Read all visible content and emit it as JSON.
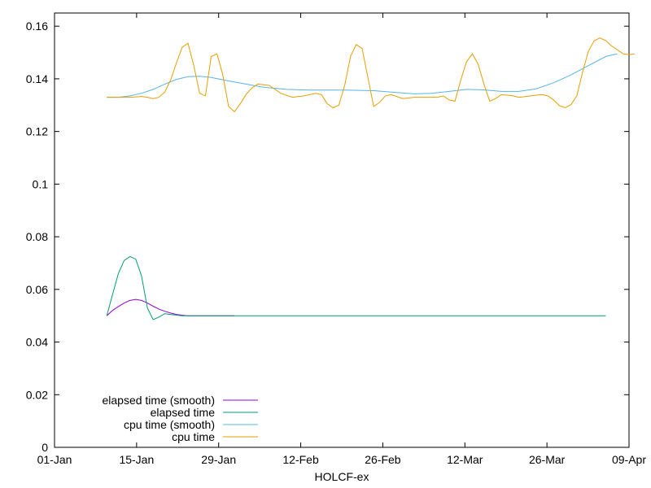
{
  "chart_data": {
    "type": "line",
    "xlabel": "HOLCF-ex",
    "ylabel": "",
    "x_ticks": [
      "01-Jan",
      "15-Jan",
      "29-Jan",
      "12-Feb",
      "26-Feb",
      "12-Mar",
      "26-Mar",
      "09-Apr"
    ],
    "xlim": [
      "2024-01-01",
      "2024-04-09"
    ],
    "y_ticks": [
      "0",
      "0.02",
      "0.04",
      "0.06",
      "0.08",
      "0.1",
      "0.12",
      "0.14",
      "0.16"
    ],
    "ylim": [
      0,
      0.165
    ],
    "grid": false,
    "legend_position": "bottom-left",
    "series": [
      {
        "name": "elapsed time (smooth)",
        "color": "#9400d3",
        "points": [
          [
            "2024-01-10",
            0.05
          ],
          [
            "2024-01-11",
            0.052
          ],
          [
            "2024-01-12",
            0.0535
          ],
          [
            "2024-01-13",
            0.0548
          ],
          [
            "2024-01-14",
            0.0558
          ],
          [
            "2024-01-15",
            0.0562
          ],
          [
            "2024-01-16",
            0.0558
          ],
          [
            "2024-01-17",
            0.0548
          ],
          [
            "2024-01-18",
            0.0536
          ],
          [
            "2024-01-19",
            0.0525
          ],
          [
            "2024-01-20",
            0.0517
          ],
          [
            "2024-01-21",
            0.051
          ],
          [
            "2024-01-22",
            0.0505
          ],
          [
            "2024-01-23",
            0.0502
          ],
          [
            "2024-01-24",
            0.05
          ],
          [
            "2024-02-01",
            0.05
          ]
        ]
      },
      {
        "name": "elapsed time",
        "color": "#009e73",
        "points": [
          [
            "2024-01-10",
            0.05
          ],
          [
            "2024-01-11",
            0.058
          ],
          [
            "2024-01-12",
            0.066
          ],
          [
            "2024-01-13",
            0.071
          ],
          [
            "2024-01-14",
            0.0725
          ],
          [
            "2024-01-15",
            0.0715
          ],
          [
            "2024-01-16",
            0.065
          ],
          [
            "2024-01-17",
            0.053
          ],
          [
            "2024-01-18",
            0.0485
          ],
          [
            "2024-01-19",
            0.0495
          ],
          [
            "2024-01-20",
            0.0508
          ],
          [
            "2024-01-21",
            0.0505
          ],
          [
            "2024-01-23",
            0.05
          ],
          [
            "2024-04-05",
            0.05
          ]
        ]
      },
      {
        "name": "cpu time (smooth)",
        "color": "#56b4e9",
        "points": [
          [
            "2024-01-10",
            0.133
          ],
          [
            "2024-01-12",
            0.133
          ],
          [
            "2024-01-14",
            0.1335
          ],
          [
            "2024-01-16",
            0.1345
          ],
          [
            "2024-01-18",
            0.136
          ],
          [
            "2024-01-20",
            0.138
          ],
          [
            "2024-01-22",
            0.1398
          ],
          [
            "2024-01-24",
            0.1408
          ],
          [
            "2024-01-26",
            0.141
          ],
          [
            "2024-01-28",
            0.1405
          ],
          [
            "2024-01-31",
            0.1392
          ],
          [
            "2024-02-03",
            0.138
          ],
          [
            "2024-02-06",
            0.1368
          ],
          [
            "2024-02-10",
            0.136
          ],
          [
            "2024-02-14",
            0.1357
          ],
          [
            "2024-02-20",
            0.1357
          ],
          [
            "2024-02-25",
            0.1355
          ],
          [
            "2024-02-29",
            0.1348
          ],
          [
            "2024-03-03",
            0.1343
          ],
          [
            "2024-03-06",
            0.1345
          ],
          [
            "2024-03-09",
            0.1352
          ],
          [
            "2024-03-12",
            0.136
          ],
          [
            "2024-03-15",
            0.1358
          ],
          [
            "2024-03-18",
            0.1352
          ],
          [
            "2024-03-21",
            0.1352
          ],
          [
            "2024-03-24",
            0.1362
          ],
          [
            "2024-03-27",
            0.1385
          ],
          [
            "2024-03-30",
            0.1415
          ],
          [
            "2024-04-02",
            0.145
          ],
          [
            "2024-04-05",
            0.1485
          ],
          [
            "2024-04-07",
            0.1495
          ]
        ]
      },
      {
        "name": "cpu time",
        "color": "#e69f00",
        "points": [
          [
            "2024-01-10",
            0.133
          ],
          [
            "2024-01-12",
            0.133
          ],
          [
            "2024-01-14",
            0.133
          ],
          [
            "2024-01-16",
            0.1333
          ],
          [
            "2024-01-17",
            0.133
          ],
          [
            "2024-01-18",
            0.1325
          ],
          [
            "2024-01-19",
            0.133
          ],
          [
            "2024-01-20",
            0.135
          ],
          [
            "2024-01-21",
            0.1395
          ],
          [
            "2024-01-22",
            0.146
          ],
          [
            "2024-01-23",
            0.152
          ],
          [
            "2024-01-24",
            0.1535
          ],
          [
            "2024-01-25",
            0.145
          ],
          [
            "2024-01-26",
            0.1345
          ],
          [
            "2024-01-27",
            0.1335
          ],
          [
            "2024-01-28",
            0.1485
          ],
          [
            "2024-01-29",
            0.1495
          ],
          [
            "2024-01-30",
            0.1415
          ],
          [
            "2024-01-31",
            0.1295
          ],
          [
            "2024-02-01",
            0.1275
          ],
          [
            "2024-02-02",
            0.1305
          ],
          [
            "2024-02-03",
            0.134
          ],
          [
            "2024-02-04",
            0.1365
          ],
          [
            "2024-02-05",
            0.138
          ],
          [
            "2024-02-07",
            0.1375
          ],
          [
            "2024-02-09",
            0.1345
          ],
          [
            "2024-02-11",
            0.133
          ],
          [
            "2024-02-13",
            0.1335
          ],
          [
            "2024-02-15",
            0.1345
          ],
          [
            "2024-02-16",
            0.134
          ],
          [
            "2024-02-17",
            0.1305
          ],
          [
            "2024-02-18",
            0.129
          ],
          [
            "2024-02-19",
            0.13
          ],
          [
            "2024-02-20",
            0.1375
          ],
          [
            "2024-02-21",
            0.1485
          ],
          [
            "2024-02-22",
            0.153
          ],
          [
            "2024-02-23",
            0.1515
          ],
          [
            "2024-02-24",
            0.1405
          ],
          [
            "2024-02-25",
            0.1295
          ],
          [
            "2024-02-26",
            0.131
          ],
          [
            "2024-02-27",
            0.1335
          ],
          [
            "2024-02-28",
            0.134
          ],
          [
            "2024-03-01",
            0.1325
          ],
          [
            "2024-03-03",
            0.133
          ],
          [
            "2024-03-07",
            0.133
          ],
          [
            "2024-03-08",
            0.1335
          ],
          [
            "2024-03-09",
            0.132
          ],
          [
            "2024-03-10",
            0.1315
          ],
          [
            "2024-03-11",
            0.1395
          ],
          [
            "2024-03-12",
            0.1465
          ],
          [
            "2024-03-13",
            0.1495
          ],
          [
            "2024-03-14",
            0.1455
          ],
          [
            "2024-03-15",
            0.138
          ],
          [
            "2024-03-16",
            0.1315
          ],
          [
            "2024-03-17",
            0.1325
          ],
          [
            "2024-03-18",
            0.134
          ],
          [
            "2024-03-20",
            0.1335
          ],
          [
            "2024-03-21",
            0.133
          ],
          [
            "2024-03-22",
            0.1332
          ],
          [
            "2024-03-24",
            0.1338
          ],
          [
            "2024-03-25",
            0.134
          ],
          [
            "2024-03-26",
            0.1335
          ],
          [
            "2024-03-27",
            0.132
          ],
          [
            "2024-03-28",
            0.1298
          ],
          [
            "2024-03-29",
            0.129
          ],
          [
            "2024-03-30",
            0.1302
          ],
          [
            "2024-03-31",
            0.1335
          ],
          [
            "2024-04-01",
            0.1425
          ],
          [
            "2024-04-02",
            0.1505
          ],
          [
            "2024-04-03",
            0.1545
          ],
          [
            "2024-04-04",
            0.1555
          ],
          [
            "2024-04-05",
            0.1545
          ],
          [
            "2024-04-06",
            0.1525
          ],
          [
            "2024-04-07",
            0.151
          ],
          [
            "2024-04-08",
            0.1495
          ],
          [
            "2024-04-09",
            0.1492
          ],
          [
            "2024-04-10",
            0.1495
          ]
        ]
      }
    ]
  }
}
